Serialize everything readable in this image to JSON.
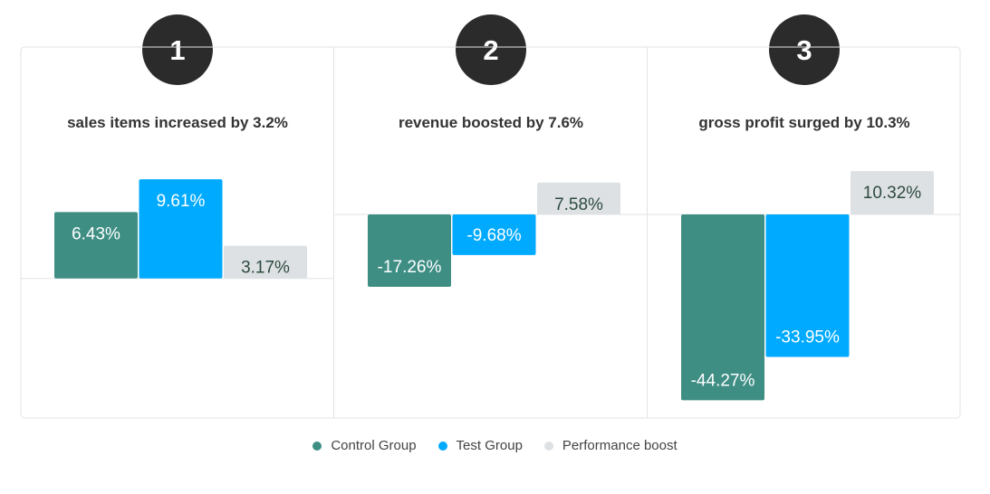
{
  "colors": {
    "control": "#3e8e84",
    "test": "#00aaff",
    "boost": "#dde1e4",
    "badge": "#2b2b2b",
    "panel_border": "#e3e3e3"
  },
  "chart_data": [
    {
      "type": "bar",
      "badge": "1",
      "title": "sales items increased by 3.2%",
      "categories": [
        "Control Group",
        "Test Group",
        "Performance boost"
      ],
      "values": [
        6.43,
        9.61,
        3.17
      ],
      "labels": [
        "6.43%",
        "9.61%",
        "3.17%"
      ],
      "ylim": [
        -12.9,
        11.9
      ]
    },
    {
      "type": "bar",
      "badge": "2",
      "title": "revenue boosted by 7.6%",
      "categories": [
        "Control Group",
        "Test Group",
        "Performance boost"
      ],
      "values": [
        -17.26,
        -9.68,
        7.58
      ],
      "labels": [
        "-17.26%",
        "-9.68%",
        "7.58%"
      ],
      "ylim": [
        -47,
        14
      ]
    },
    {
      "type": "bar",
      "badge": "3",
      "title": "gross profit surged by 10.3%",
      "categories": [
        "Control Group",
        "Test Group",
        "Performance boost"
      ],
      "values": [
        -44.27,
        -33.95,
        10.32
      ],
      "labels": [
        "-44.27%",
        "-33.95%",
        "10.32%"
      ],
      "ylim": [
        -47,
        14
      ]
    }
  ],
  "legend": [
    {
      "label": "Control Group",
      "color": "#3e8e84"
    },
    {
      "label": "Test Group",
      "color": "#00aaff"
    },
    {
      "label": "Performance boost",
      "color": "#dde1e4"
    }
  ]
}
